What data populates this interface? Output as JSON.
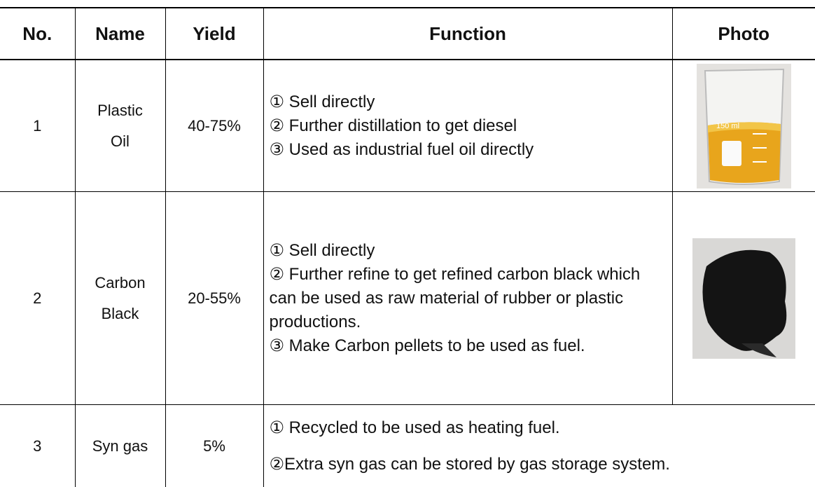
{
  "table": {
    "header": [
      "No.",
      "Name",
      "Yield",
      "Function",
      "Photo"
    ],
    "rows": [
      {
        "no": "1",
        "name": [
          "Plastic",
          "Oil"
        ],
        "yield": "40-75%",
        "function": [
          "① Sell directly",
          "② Further distillation to get diesel",
          "③ Used as industrial fuel oil directly"
        ]
      },
      {
        "no": "2",
        "name": [
          "Carbon",
          "Black"
        ],
        "yield": "20-55%",
        "function": [
          "① Sell directly",
          "② Further refine to get refined carbon black which can be used as raw material of rubber or plastic productions.",
          "③ Make Carbon pellets to be used as fuel."
        ]
      },
      {
        "no": "3",
        "name": [
          "Syn gas"
        ],
        "yield": "5%",
        "function": [
          "① Recycled to be used as heating fuel.",
          "②Extra syn gas can be stored by gas storage system."
        ]
      }
    ]
  }
}
